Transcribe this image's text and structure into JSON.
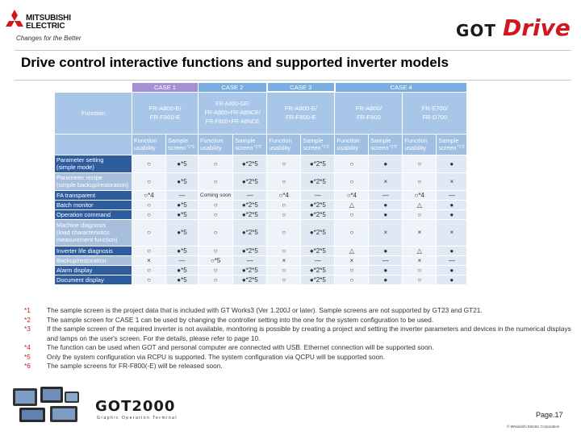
{
  "header": {
    "brand_line1": "MITSUBISHI",
    "brand_line2": "ELECTRIC",
    "tagline": "Changes for the Better",
    "product_got": "GOT",
    "product_drive": "Drive"
  },
  "title": "Drive control interactive functions and supported inverter models",
  "table": {
    "cases": [
      "CASE 1",
      "CASE 2",
      "CASE 3",
      "CASE 4"
    ],
    "function_header": "Function",
    "models": [
      "FR-A800-E/\nFR-F800-E",
      "FR-A800-GF/\nFR-A800+FR-A8NCE/\nFR-F800+FR-A8NCE",
      "FR-A800-E/\nFR-F800-E",
      "FR-A800/\nFR-F800",
      "FR-E700/\nFR-D700"
    ],
    "sub_headers": [
      "Function usability",
      "Sample screen"
    ],
    "sub_marks": [
      "*1*3",
      "*1*2",
      "*1*2",
      "*1*2",
      "*1*2"
    ],
    "rows": [
      {
        "label": "Parameter setting",
        "label2": "(simple mode)",
        "style": "dark",
        "cells": [
          "○",
          "●*5",
          "○",
          "●*2*5",
          "○",
          "●*2*5",
          "○",
          "●",
          "○",
          "●"
        ]
      },
      {
        "label": "Parameter recipe",
        "label2": "(simple backup/restoration)",
        "style": "light",
        "cells": [
          "○",
          "●*5",
          "○",
          "●*2*5",
          "○",
          "●*2*5",
          "○",
          "×",
          "○",
          "×"
        ]
      },
      {
        "label": "FA transparent",
        "label2": "",
        "style": "dark",
        "cells": [
          "○*4",
          "—",
          "Coming soon",
          "—",
          "○*4",
          "—",
          "○*4",
          "—",
          "○*4",
          "—"
        ]
      },
      {
        "label": "Batch monitor",
        "label2": "",
        "style": "dark",
        "cells": [
          "○",
          "●*5",
          "○",
          "●*2*5",
          "○",
          "●*2*5",
          "△",
          "●",
          "△",
          "●"
        ]
      },
      {
        "label": "Operation command",
        "label2": "",
        "style": "dark",
        "cells": [
          "○",
          "●*5",
          "○",
          "●*2*5",
          "○",
          "●*2*5",
          "○",
          "●",
          "○",
          "●"
        ]
      },
      {
        "label": "Machine diagnosis",
        "label2": "(load characteristics measurement function)",
        "style": "light",
        "cells": [
          "○",
          "●*5",
          "○",
          "●*2*5",
          "○",
          "●*2*5",
          "○",
          "×",
          "×",
          "×"
        ]
      },
      {
        "label": "Inverter life diagnosis",
        "label2": "",
        "style": "dark",
        "cells": [
          "○",
          "●*5",
          "○",
          "●*2*5",
          "○",
          "●*2*5",
          "△",
          "●",
          "△",
          "●"
        ]
      },
      {
        "label": "Backup/restoration",
        "label2": "",
        "style": "light",
        "cells": [
          "×",
          "—",
          "○*5",
          "—",
          "×",
          "—",
          "×",
          "—",
          "×",
          "—"
        ]
      },
      {
        "label": "Alarm display",
        "label2": "",
        "style": "dark",
        "cells": [
          "○",
          "●*5",
          "○",
          "●*2*5",
          "○",
          "●*2*5",
          "○",
          "●",
          "○",
          "●"
        ]
      },
      {
        "label": "Document display",
        "label2": "",
        "style": "dark",
        "cells": [
          "○",
          "●*5",
          "○",
          "●*2*5",
          "○",
          "●*2*5",
          "○",
          "●",
          "○",
          "●"
        ]
      }
    ]
  },
  "notes": [
    {
      "num": "*1",
      "text": "The sample screen is the project data that is included with GT Works3 (Ver 1.200J or later). Sample screens are not supported by GT23 and GT21."
    },
    {
      "num": "*2",
      "text": "The sample screen for CASE 1 can be used by changing the controller setting into the one for the system configuration to be used."
    },
    {
      "num": "*3",
      "text": "If the sample screen of the required inverter is not available, monitoring is possible by creating a project and setting the inverter parameters and devices in the numerical displays and lamps on the user's screen. For the details, please refer to page 10."
    },
    {
      "num": "*4",
      "text": "The function can be used when GOT and personal computer are connected with USB. Ethernet connection will be supported soon."
    },
    {
      "num": "*5",
      "text": "Only the system configuration via RCPU is supported. The system configuration via QCPU will be supported soon."
    },
    {
      "num": "*6",
      "text": "The sample screens for FR-F800(-E) will be released soon."
    }
  ],
  "footer": {
    "got2000": "GOT2000",
    "got2000_sub": "Graphic Operation Terminal",
    "page": "Page.17",
    "copyright": "© Mitsubishi Electric Corporation"
  }
}
